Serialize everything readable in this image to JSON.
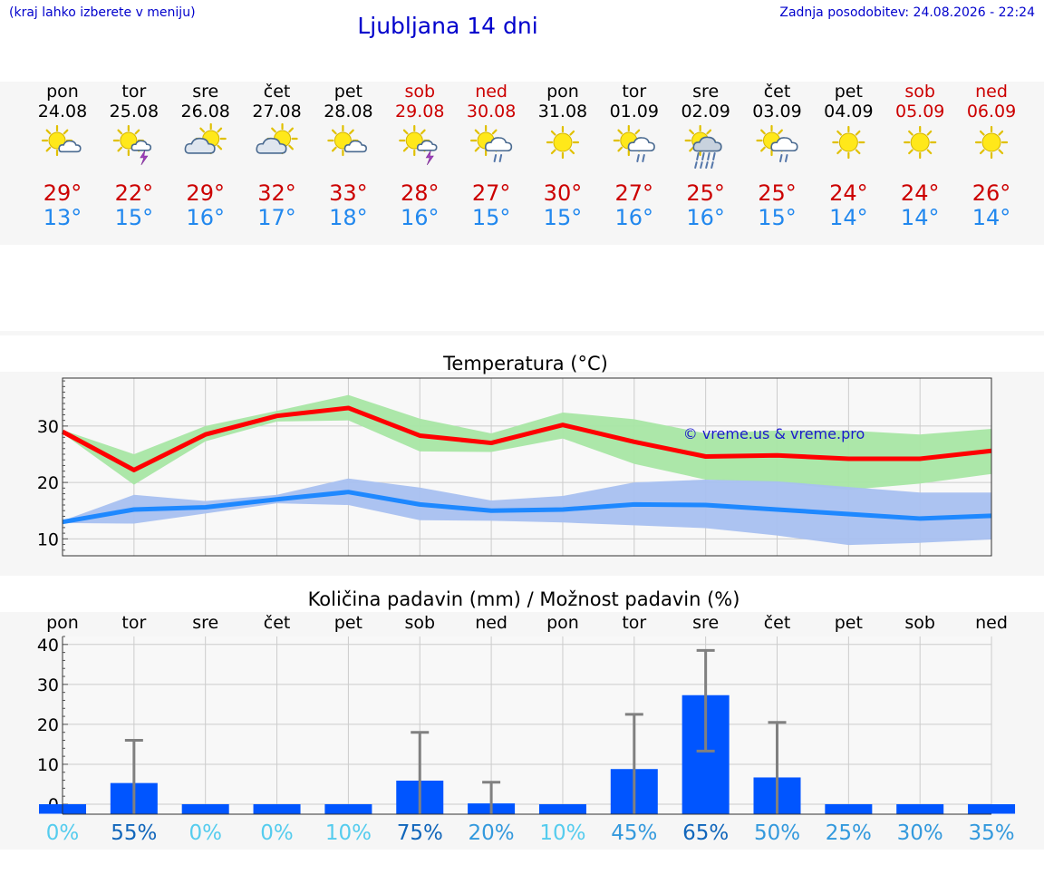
{
  "header": {
    "hint": "(kraj lahko izberete v meniju)",
    "title": "Ljubljana 14 dni",
    "updated": "Zadnja posodobitev: 24.08.2026 - 22:24"
  },
  "days": [
    {
      "dow": "pon",
      "date": "24.08",
      "weekend": false,
      "icon": "sun-cloud-icon",
      "tmax": "29°",
      "tmin": "13°"
    },
    {
      "dow": "tor",
      "date": "25.08",
      "weekend": false,
      "icon": "sun-thunderstorm-icon",
      "tmax": "22°",
      "tmin": "15°"
    },
    {
      "dow": "sre",
      "date": "26.08",
      "weekend": false,
      "icon": "sun-behind-cloud-icon",
      "tmax": "29°",
      "tmin": "16°"
    },
    {
      "dow": "čet",
      "date": "27.08",
      "weekend": false,
      "icon": "sun-behind-cloud-icon",
      "tmax": "32°",
      "tmin": "17°"
    },
    {
      "dow": "pet",
      "date": "28.08",
      "weekend": false,
      "icon": "sun-cloud-icon",
      "tmax": "33°",
      "tmin": "18°"
    },
    {
      "dow": "sob",
      "date": "29.08",
      "weekend": true,
      "icon": "sun-thunderstorm-icon",
      "tmax": "28°",
      "tmin": "16°"
    },
    {
      "dow": "ned",
      "date": "30.08",
      "weekend": true,
      "icon": "sun-cloud-rain-icon",
      "tmax": "27°",
      "tmin": "15°"
    },
    {
      "dow": "pon",
      "date": "31.08",
      "weekend": false,
      "icon": "sun-icon",
      "tmax": "30°",
      "tmin": "15°"
    },
    {
      "dow": "tor",
      "date": "01.09",
      "weekend": false,
      "icon": "sun-cloud-rain-icon",
      "tmax": "27°",
      "tmin": "16°"
    },
    {
      "dow": "sre",
      "date": "02.09",
      "weekend": false,
      "icon": "sun-cloud-heavy-rain-icon",
      "tmax": "25°",
      "tmin": "16°"
    },
    {
      "dow": "čet",
      "date": "03.09",
      "weekend": false,
      "icon": "sun-cloud-rain-icon",
      "tmax": "25°",
      "tmin": "15°"
    },
    {
      "dow": "pet",
      "date": "04.09",
      "weekend": false,
      "icon": "sun-icon",
      "tmax": "24°",
      "tmin": "14°"
    },
    {
      "dow": "sob",
      "date": "05.09",
      "weekend": true,
      "icon": "sun-icon",
      "tmax": "24°",
      "tmin": "14°"
    },
    {
      "dow": "ned",
      "date": "06.09",
      "weekend": true,
      "icon": "sun-icon",
      "tmax": "26°",
      "tmin": "14°"
    }
  ],
  "colors": {
    "weekday_text": "#000000",
    "weekend_text": "#cc0000",
    "tmax_text": "#cc0000",
    "tmin_text": "#2288ee",
    "tmax_line": "#ff0000",
    "tmax_band": "#a8e6a4",
    "tmin_line": "#1e88ff",
    "tmin_band": "#a8c0f0",
    "precip_bar": "#0055ff",
    "error_bar": "#808080"
  },
  "chart_data": [
    {
      "type": "line",
      "title": "Temperatura (°C)",
      "watermark": "© vreme.us & vreme.pro",
      "x": [
        "24.08",
        "25.08",
        "26.08",
        "27.08",
        "28.08",
        "29.08",
        "30.08",
        "31.08",
        "01.09",
        "02.09",
        "03.09",
        "04.09",
        "05.09",
        "06.09"
      ],
      "ylim": [
        7,
        38.5
      ],
      "yticks": [
        10,
        20,
        30
      ],
      "grid": true,
      "series": [
        {
          "key": "tmax",
          "values": [
            29.0,
            22.2,
            28.5,
            31.8,
            33.2,
            28.3,
            27.0,
            30.2,
            27.2,
            24.6,
            24.8,
            24.2,
            24.2,
            25.6
          ],
          "band_high": [
            29.3,
            25.0,
            30.0,
            32.7,
            35.5,
            31.3,
            28.7,
            32.4,
            31.2,
            28.7,
            29.2,
            29.2,
            28.5,
            29.5
          ],
          "band_low": [
            28.7,
            19.6,
            27.3,
            30.8,
            31.0,
            25.5,
            25.4,
            27.8,
            23.3,
            20.5,
            20.0,
            18.7,
            19.8,
            21.5
          ]
        },
        {
          "key": "tmin",
          "values": [
            13.0,
            15.2,
            15.6,
            17.0,
            18.3,
            16.1,
            15.0,
            15.2,
            16.1,
            16.0,
            15.2,
            14.4,
            13.6,
            14.1
          ],
          "band_high": [
            13.2,
            17.8,
            16.7,
            17.8,
            20.7,
            19.1,
            16.8,
            17.6,
            20.0,
            20.5,
            20.2,
            19.2,
            18.2,
            18.2
          ],
          "band_low": [
            12.8,
            12.7,
            14.5,
            16.3,
            16.0,
            13.3,
            13.2,
            12.9,
            12.4,
            11.9,
            10.6,
            8.9,
            9.3,
            9.9
          ]
        }
      ]
    },
    {
      "type": "bar",
      "title": "Količina padavin (mm) / Možnost padavin (%)",
      "categories": [
        "pon",
        "tor",
        "sre",
        "čet",
        "pet",
        "sob",
        "ned",
        "pon",
        "tor",
        "sre",
        "čet",
        "pet",
        "sob",
        "ned"
      ],
      "values": [
        0,
        5.3,
        0,
        0,
        0,
        5.9,
        0.2,
        0,
        8.8,
        27.3,
        6.7,
        0,
        0,
        0
      ],
      "error_high": [
        0,
        16.0,
        0,
        0,
        0,
        18.0,
        5.5,
        0,
        22.5,
        38.5,
        20.5,
        0,
        0,
        0
      ],
      "error_low": [
        0,
        0,
        0,
        0,
        0,
        0,
        0,
        0,
        0,
        13.3,
        0,
        0,
        0,
        0
      ],
      "probability": [
        "0%",
        "55%",
        "0%",
        "0%",
        "10%",
        "75%",
        "20%",
        "10%",
        "45%",
        "65%",
        "50%",
        "25%",
        "30%",
        "35%"
      ],
      "probability_colors": [
        "#55ccee",
        "#1166bb",
        "#55ccee",
        "#55ccee",
        "#55ccee",
        "#1166bb",
        "#3399dd",
        "#55ccee",
        "#3399dd",
        "#1166bb",
        "#3399dd",
        "#3399dd",
        "#3399dd",
        "#3399dd"
      ],
      "ylim": [
        -2.5,
        42
      ],
      "yticks": [
        0,
        10,
        20,
        30,
        40
      ],
      "grid": true
    }
  ]
}
